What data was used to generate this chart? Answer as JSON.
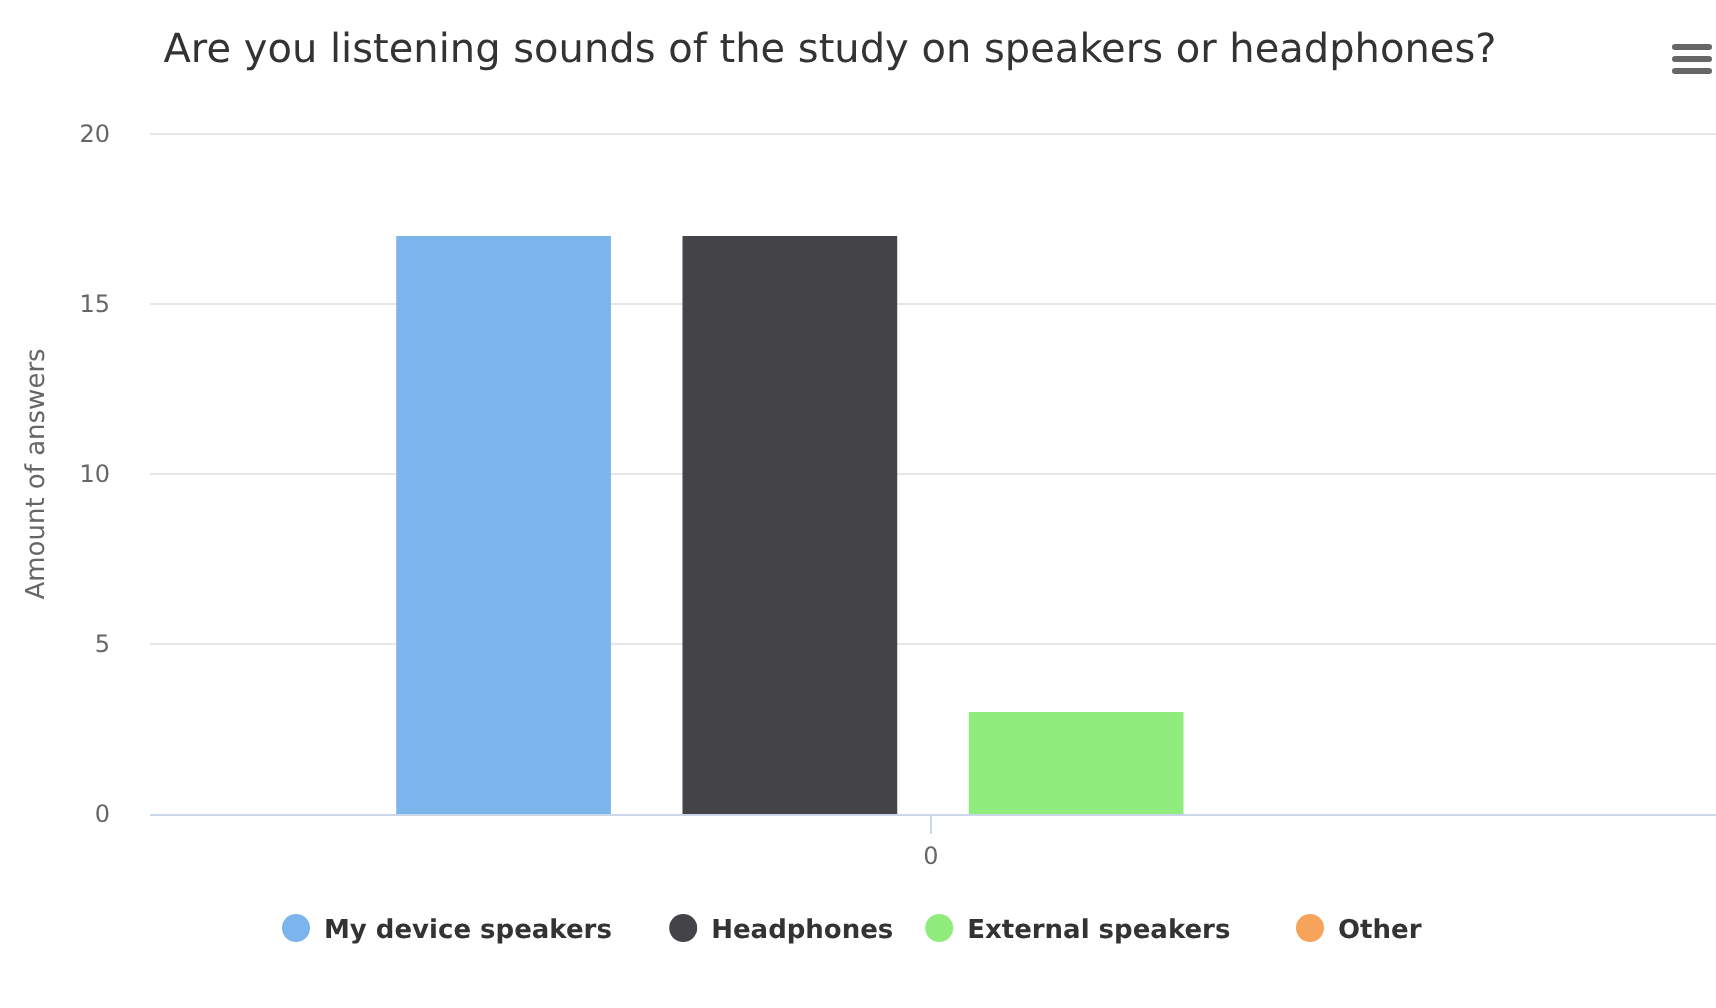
{
  "chart_data": {
    "type": "bar",
    "title": "Are you listening sounds of the study on speakers or headphones?",
    "ylabel": "Amount of answers",
    "categories": [
      "0"
    ],
    "series": [
      {
        "name": "My device speakers",
        "color": "#7cb5ec",
        "values": [
          17
        ]
      },
      {
        "name": "Headphones",
        "color": "#434348",
        "values": [
          17
        ]
      },
      {
        "name": "External speakers",
        "color": "#90ed7d",
        "values": [
          3
        ]
      },
      {
        "name": "Other",
        "color": "#f7a35c",
        "values": [
          0
        ]
      }
    ],
    "ylim": [
      0,
      20
    ],
    "yticks": [
      0,
      5,
      10,
      15,
      20
    ],
    "grid": "y",
    "legend": "bottom"
  }
}
